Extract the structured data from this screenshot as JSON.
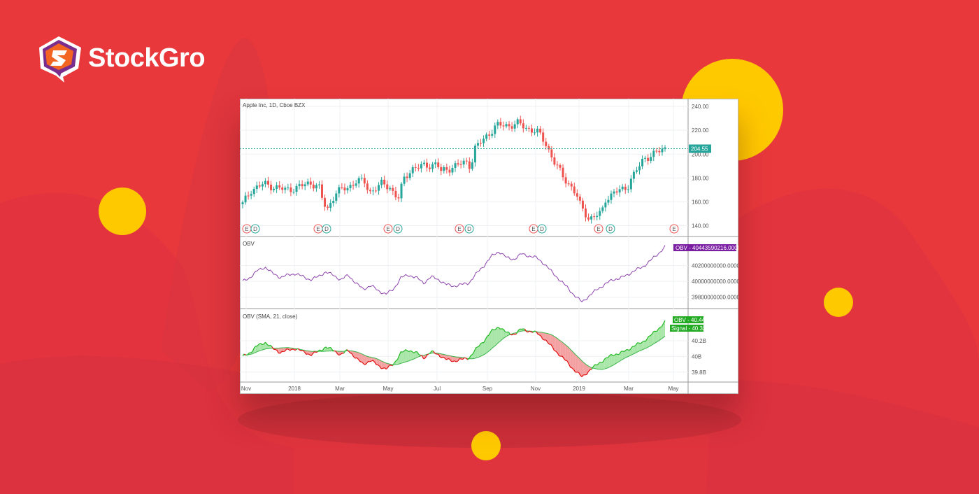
{
  "brand": {
    "name": "StockGro",
    "colors": {
      "background": "#e8383c",
      "logo_orange": "#f26522",
      "logo_purple": "#7b2d8e",
      "accent_yellow": "#ffc900"
    }
  },
  "chart_data": [
    {
      "type": "candlestick",
      "title": "Apple Inc, 1D, Cboe BZX",
      "ylim": [
        135,
        243
      ],
      "yticks": [
        240,
        220,
        200,
        180,
        160,
        140
      ],
      "ytick_labels": [
        "240.00",
        "220.00",
        "200.00",
        "180.00",
        "160.00",
        "140.00"
      ],
      "x_labels": [
        "Nov",
        "2018",
        "Mar",
        "May",
        "Jul",
        "Sep",
        "Nov",
        "2019",
        "Mar",
        "May"
      ],
      "last_price": 204.55,
      "last_price_label": "204.55",
      "up_color": "#26a69a",
      "down_color": "#ef5350",
      "close_path": [
        [
          0,
          158
        ],
        [
          0.02,
          170
        ],
        [
          0.05,
          175
        ],
        [
          0.1,
          170
        ],
        [
          0.13,
          172
        ],
        [
          0.16,
          176
        ],
        [
          0.18,
          173
        ],
        [
          0.19,
          160
        ],
        [
          0.2,
          153
        ],
        [
          0.22,
          168
        ],
        [
          0.25,
          172
        ],
        [
          0.27,
          178
        ],
        [
          0.29,
          176
        ],
        [
          0.3,
          168
        ],
        [
          0.33,
          175
        ],
        [
          0.35,
          172
        ],
        [
          0.36,
          166
        ],
        [
          0.37,
          163
        ],
        [
          0.38,
          178
        ],
        [
          0.4,
          188
        ],
        [
          0.43,
          190
        ],
        [
          0.46,
          192
        ],
        [
          0.47,
          185
        ],
        [
          0.5,
          190
        ],
        [
          0.53,
          193
        ],
        [
          0.54,
          190
        ],
        [
          0.55,
          205
        ],
        [
          0.57,
          212
        ],
        [
          0.6,
          224
        ],
        [
          0.63,
          224
        ],
        [
          0.65,
          226
        ],
        [
          0.67,
          222
        ],
        [
          0.69,
          220
        ],
        [
          0.7,
          218
        ],
        [
          0.72,
          207
        ],
        [
          0.74,
          192
        ],
        [
          0.76,
          180
        ],
        [
          0.78,
          172
        ],
        [
          0.79,
          166
        ],
        [
          0.8,
          156
        ],
        [
          0.82,
          146
        ],
        [
          0.84,
          149
        ],
        [
          0.85,
          150
        ],
        [
          0.86,
          163
        ],
        [
          0.88,
          168
        ],
        [
          0.9,
          170
        ],
        [
          0.91,
          172
        ],
        [
          0.92,
          180
        ],
        [
          0.94,
          190
        ],
        [
          0.95,
          196
        ],
        [
          0.97,
          200
        ],
        [
          0.985,
          202
        ],
        [
          1.0,
          204.5
        ]
      ],
      "events": [
        "E",
        "D",
        "E",
        "D",
        "E",
        "D",
        "E",
        "D",
        "E",
        "D",
        "E",
        "D",
        "E"
      ]
    },
    {
      "type": "line",
      "title": "OBV",
      "ylim": [
        39700000000,
        40480000000
      ],
      "yticks": [
        40200000000,
        40000000000,
        39800000000
      ],
      "ytick_labels": [
        "40200000000.0000",
        "40000000000.0000",
        "39800000000.0000"
      ],
      "line_color": "#8e44ad",
      "last_value_label": "OBV - 40443590216.0000",
      "values_billions": [
        40.0,
        40.05,
        40.14,
        40.18,
        40.1,
        40.05,
        40.08,
        40.1,
        40.06,
        40.02,
        40.06,
        40.12,
        40.08,
        40.02,
        40.08,
        39.98,
        39.9,
        39.95,
        39.88,
        39.84,
        39.9,
        40.05,
        40.08,
        40.05,
        39.98,
        40.06,
        40.02,
        39.96,
        39.94,
        39.96,
        39.98,
        40.1,
        40.2,
        40.32,
        40.38,
        40.3,
        40.28,
        40.35,
        40.32,
        40.3,
        40.22,
        40.12,
        40.02,
        39.93,
        39.82,
        39.74,
        39.82,
        39.9,
        39.96,
        40.02,
        40.04,
        40.08,
        40.14,
        40.18,
        40.26,
        40.34,
        40.44
      ]
    },
    {
      "type": "area",
      "title": "OBV (SMA, 21, close)",
      "ylim": [
        39.7,
        40.52
      ],
      "yticks": [
        40.2,
        40,
        39.8
      ],
      "ytick_labels": [
        "40.2B",
        "40B",
        "39.8B"
      ],
      "series": [
        {
          "name": "OBV",
          "color": "#2ecc40",
          "last_label": "OBV - 40.4448"
        },
        {
          "name": "Signal",
          "color": "#2ecc40",
          "last_label": "Signal - 40.3258"
        }
      ],
      "fill_up_color": "#a8e6a8",
      "fill_down_color": "#f4a0a0"
    }
  ]
}
